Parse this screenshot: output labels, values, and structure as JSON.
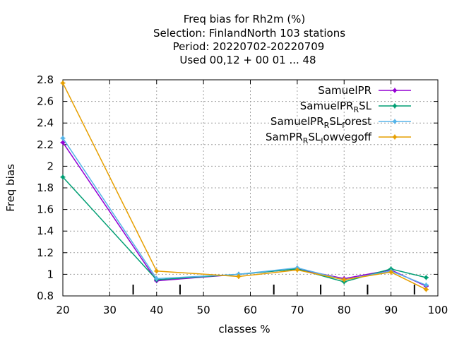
{
  "chart_data": {
    "type": "line",
    "title_lines": [
      "Freq bias  for Rh2m (%)",
      "Selection: FinlandNorth    103 stations",
      "Period: 20220702-20220709",
      "Used  00,12  + 00 01 ... 48"
    ],
    "xlabel": "classes %",
    "ylabel": "Freq bias",
    "xlim": [
      20,
      100
    ],
    "ylim": [
      0.8,
      2.8
    ],
    "xticks": [
      20,
      30,
      40,
      50,
      60,
      70,
      80,
      90,
      100
    ],
    "yticks": [
      0.8,
      1,
      1.2,
      1.4,
      1.6,
      1.8,
      2,
      2.2,
      2.4,
      2.6,
      2.8
    ],
    "ytick_labels": [
      "0.8",
      "1",
      "1.2",
      "1.4",
      "1.6",
      "1.8",
      "2",
      "2.2",
      "2.4",
      "2.6",
      "2.8"
    ],
    "grid": true,
    "legend_position": "top-right",
    "series": [
      {
        "legend_parts": [
          {
            "t": "SamuelPR",
            "s": false
          }
        ],
        "color": "#9400d3",
        "x": [
          20,
          40,
          57.5,
          70,
          80,
          90,
          97.5
        ],
        "y": [
          2.22,
          0.94,
          1.0,
          1.05,
          0.96,
          1.04,
          0.89
        ]
      },
      {
        "legend_parts": [
          {
            "t": "SamuelPR",
            "s": false
          },
          {
            "t": "R",
            "s": true
          },
          {
            "t": "SL",
            "s": false
          }
        ],
        "color": "#009e73",
        "x": [
          20,
          40,
          57.5,
          70,
          80,
          90,
          97.5
        ],
        "y": [
          1.9,
          0.95,
          1.0,
          1.05,
          0.93,
          1.05,
          0.97
        ]
      },
      {
        "legend_parts": [
          {
            "t": "SamuelPR",
            "s": false
          },
          {
            "t": "R",
            "s": true
          },
          {
            "t": "SL",
            "s": false
          },
          {
            "t": "f",
            "s": true
          },
          {
            "t": "orest",
            "s": false
          }
        ],
        "color": "#56b4e9",
        "x": [
          20,
          40,
          57.5,
          70,
          80,
          90,
          97.5
        ],
        "y": [
          2.26,
          0.96,
          1.0,
          1.06,
          0.95,
          1.03,
          0.9
        ]
      },
      {
        "legend_parts": [
          {
            "t": "SamPR",
            "s": false
          },
          {
            "t": "R",
            "s": true
          },
          {
            "t": "SL",
            "s": false
          },
          {
            "t": "l",
            "s": true
          },
          {
            "t": "owvegoff",
            "s": false
          }
        ],
        "color": "#e69f00",
        "x": [
          20,
          40,
          57.5,
          70,
          80,
          90,
          97.5
        ],
        "y": [
          2.77,
          1.03,
          0.98,
          1.04,
          0.95,
          1.02,
          0.86
        ]
      }
    ],
    "minor_markers_x": [
      35,
      45,
      65,
      75,
      85,
      95
    ]
  }
}
